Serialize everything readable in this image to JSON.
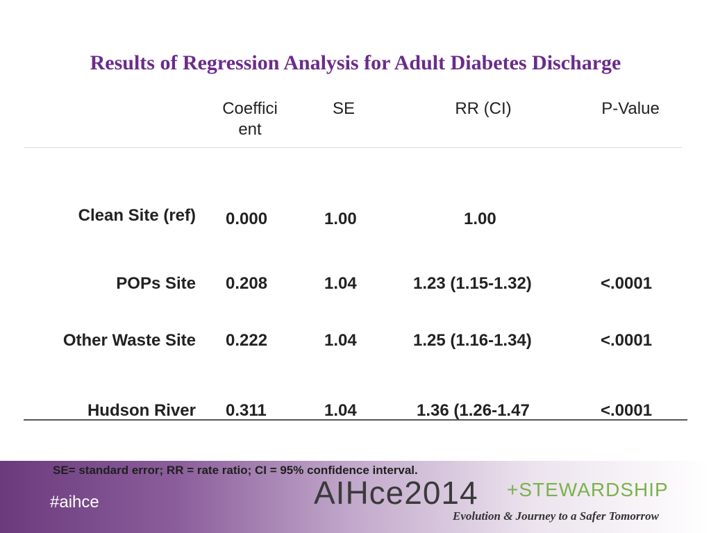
{
  "slide": {
    "title": "Results of Regression Analysis for Adult Diabetes Discharge",
    "columns": [
      "Coeffici\nent",
      "SE",
      "RR (CI)",
      "P-Value"
    ],
    "rows": [
      {
        "label": "Clean Site (ref)",
        "coefficient": "0.000",
        "se": "1.00",
        "rr": "1.00",
        "p": ""
      },
      {
        "label": "POPs Site",
        "coefficient": "0.208",
        "se": "1.04",
        "rr": "1.23 (1.15-1.32)",
        "p": "<.0001"
      },
      {
        "label": "Other Waste Site",
        "coefficient": "0.222",
        "se": "1.04",
        "rr": "1.25 (1.16-1.34)",
        "p": "<.0001"
      },
      {
        "label": "Hudson River",
        "coefficient": "0.311",
        "se": "1.04",
        "rr": "1.36 (1.26-1.47",
        "p": "<.0001"
      }
    ],
    "footnote": "SE= standard error; RR = rate ratio; CI = 95% confidence interval.",
    "hashtag": "#aihce",
    "logo_main": "AIHce2014",
    "logo_accent": "+STEWARDSHIP",
    "tagline": "Evolution & Journey to a Safer Tomorrow"
  }
}
